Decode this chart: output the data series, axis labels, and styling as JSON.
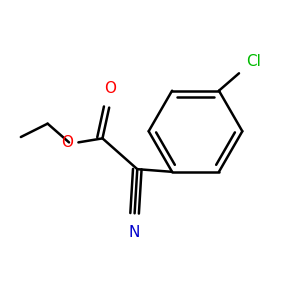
{
  "background_color": "#ffffff",
  "bond_color": "#000000",
  "O_color": "#ff0000",
  "N_color": "#0000cc",
  "Cl_color": "#00bb00",
  "line_width": 1.8,
  "figsize": [
    3.0,
    3.0
  ],
  "dpi": 100,
  "xlim": [
    0.0,
    1.1
  ],
  "ylim": [
    0.0,
    1.1
  ]
}
